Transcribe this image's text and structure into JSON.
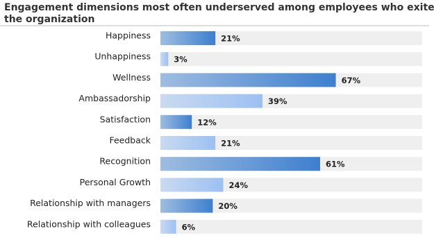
{
  "chart_data": {
    "type": "hbar",
    "title": "Engagement dimensions most often underserved among employees who exited the organization",
    "categories": [
      "Happiness",
      "Unhappiness",
      "Wellness",
      "Ambassadorship",
      "Satisfaction",
      "Feedback",
      "Recognition",
      "Personal Growth",
      "Relationship with managers",
      "Relationship with colleagues"
    ],
    "values": [
      21,
      3,
      67,
      39,
      12,
      21,
      61,
      24,
      20,
      6
    ],
    "value_labels": [
      "21%",
      "3%",
      "67%",
      "39%",
      "12%",
      "21%",
      "61%",
      "24%",
      "20%",
      "6%"
    ],
    "colors": [
      "#3d7fcf",
      "#9cc0f2",
      "#3d7fcf",
      "#9cc0f2",
      "#3d7fcf",
      "#9cc0f2",
      "#3d7fcf",
      "#9cc0f2",
      "#3d7fcf",
      "#9cc0f2"
    ],
    "xlim": [
      0,
      100
    ]
  }
}
